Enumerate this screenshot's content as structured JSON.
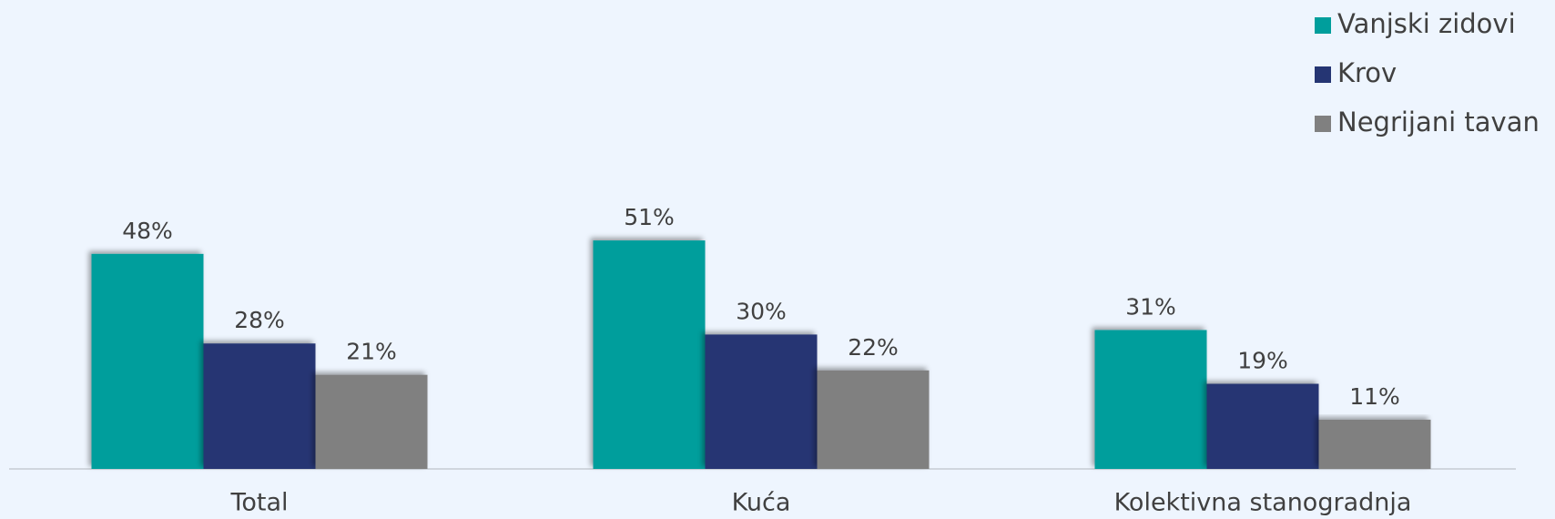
{
  "chart_data": {
    "type": "bar",
    "categories": [
      "Total",
      "Kuća",
      "Kolektivna stanogradnja"
    ],
    "series": [
      {
        "name": "Vanjski zidovi",
        "color": "#009e9c",
        "values": [
          48,
          51,
          31
        ],
        "value_labels": [
          "48%",
          "51%",
          "31%"
        ]
      },
      {
        "name": "Krov",
        "color": "#253573",
        "values": [
          28,
          30,
          19
        ],
        "value_labels": [
          "28%",
          "30%",
          "19%"
        ]
      },
      {
        "name": "Negrijani tavan",
        "color": "#808080",
        "values": [
          21,
          22,
          11
        ],
        "value_labels": [
          "21%",
          "22%",
          "11%"
        ]
      }
    ],
    "legend": "top-right"
  }
}
